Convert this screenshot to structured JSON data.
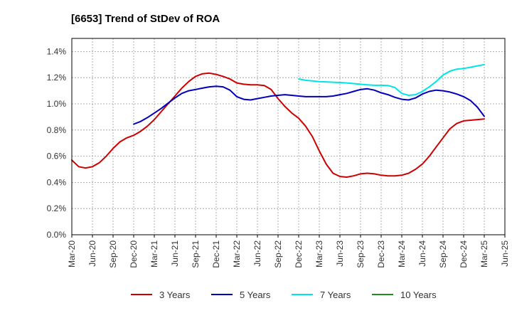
{
  "chart_data": {
    "type": "line",
    "title": "[6653]  Trend of StDev of ROA",
    "xlabel": "",
    "ylabel": "",
    "ylim": [
      0,
      1.5
    ],
    "y_ticks": [
      "0.0%",
      "0.2%",
      "0.4%",
      "0.6%",
      "0.8%",
      "1.0%",
      "1.2%",
      "1.4%"
    ],
    "y_tick_values": [
      0,
      0.2,
      0.4,
      0.6,
      0.8,
      1.0,
      1.2,
      1.4
    ],
    "x_ticks": [
      "Mar-20",
      "Jun-20",
      "Sep-20",
      "Dec-20",
      "Mar-21",
      "Jun-21",
      "Sep-21",
      "Dec-21",
      "Mar-22",
      "Jun-22",
      "Sep-22",
      "Dec-22",
      "Mar-23",
      "Jun-23",
      "Sep-23",
      "Dec-23",
      "Mar-24",
      "Jun-24",
      "Sep-24",
      "Dec-24",
      "Mar-25",
      "Jun-25"
    ],
    "x_tick_values": [
      0,
      3,
      6,
      9,
      12,
      15,
      18,
      21,
      24,
      27,
      30,
      33,
      36,
      39,
      42,
      45,
      48,
      51,
      54,
      57,
      60,
      63
    ],
    "grid": true,
    "legend_position": "bottom",
    "series": [
      {
        "name": "3 Years",
        "color": "#cc0000",
        "x": [
          0,
          1,
          2,
          3,
          4,
          5,
          6,
          7,
          8,
          9,
          10,
          11,
          12,
          13,
          14,
          15,
          16,
          17,
          18,
          19,
          20,
          21,
          22,
          23,
          24,
          25,
          26,
          27,
          28,
          29,
          30,
          31,
          32,
          33,
          34,
          35,
          36,
          37,
          38,
          39,
          40,
          41,
          42,
          43,
          44,
          45,
          46,
          47,
          48,
          49,
          50,
          51,
          52,
          53,
          54,
          55,
          56,
          57,
          58,
          59,
          60
        ],
        "values": [
          0.57,
          0.52,
          0.51,
          0.52,
          0.55,
          0.6,
          0.66,
          0.71,
          0.74,
          0.76,
          0.79,
          0.83,
          0.88,
          0.94,
          1.0,
          1.06,
          1.12,
          1.17,
          1.21,
          1.23,
          1.235,
          1.225,
          1.21,
          1.19,
          1.16,
          1.15,
          1.145,
          1.145,
          1.14,
          1.11,
          1.04,
          0.98,
          0.93,
          0.89,
          0.83,
          0.75,
          0.64,
          0.54,
          0.47,
          0.445,
          0.44,
          0.45,
          0.465,
          0.47,
          0.465,
          0.455,
          0.45,
          0.45,
          0.455,
          0.47,
          0.5,
          0.54,
          0.6,
          0.67,
          0.74,
          0.81,
          0.85,
          0.87,
          0.875,
          0.88,
          0.885
        ]
      },
      {
        "name": "5 Years",
        "color": "#0000bb",
        "x": [
          9,
          10,
          11,
          12,
          13,
          14,
          15,
          16,
          17,
          18,
          19,
          20,
          21,
          22,
          23,
          24,
          25,
          26,
          27,
          28,
          29,
          30,
          31,
          32,
          33,
          34,
          35,
          36,
          37,
          38,
          39,
          40,
          41,
          42,
          43,
          44,
          45,
          46,
          47,
          48,
          49,
          50,
          51,
          52,
          53,
          54,
          55,
          56,
          57,
          58,
          59,
          60
        ],
        "values": [
          0.845,
          0.865,
          0.895,
          0.93,
          0.965,
          1.005,
          1.045,
          1.08,
          1.1,
          1.11,
          1.12,
          1.13,
          1.135,
          1.13,
          1.105,
          1.055,
          1.035,
          1.03,
          1.04,
          1.05,
          1.06,
          1.065,
          1.07,
          1.065,
          1.06,
          1.055,
          1.055,
          1.055,
          1.055,
          1.06,
          1.07,
          1.08,
          1.095,
          1.11,
          1.115,
          1.105,
          1.085,
          1.07,
          1.05,
          1.035,
          1.03,
          1.045,
          1.075,
          1.095,
          1.105,
          1.1,
          1.09,
          1.075,
          1.055,
          1.025,
          0.975,
          0.905
        ]
      },
      {
        "name": "7 Years",
        "color": "#00e5e5",
        "x": [
          33,
          34,
          35,
          36,
          37,
          38,
          39,
          40,
          41,
          42,
          43,
          44,
          45,
          46,
          47,
          48,
          49,
          50,
          51,
          52,
          53,
          54,
          55,
          56,
          57,
          58,
          59,
          60
        ],
        "values": [
          1.19,
          1.18,
          1.175,
          1.17,
          1.168,
          1.165,
          1.163,
          1.16,
          1.155,
          1.15,
          1.145,
          1.142,
          1.142,
          1.14,
          1.125,
          1.08,
          1.065,
          1.07,
          1.095,
          1.13,
          1.17,
          1.22,
          1.25,
          1.265,
          1.27,
          1.28,
          1.29,
          1.3
        ]
      },
      {
        "name": "10 Years",
        "color": "#228b22",
        "x": [],
        "values": []
      }
    ]
  }
}
